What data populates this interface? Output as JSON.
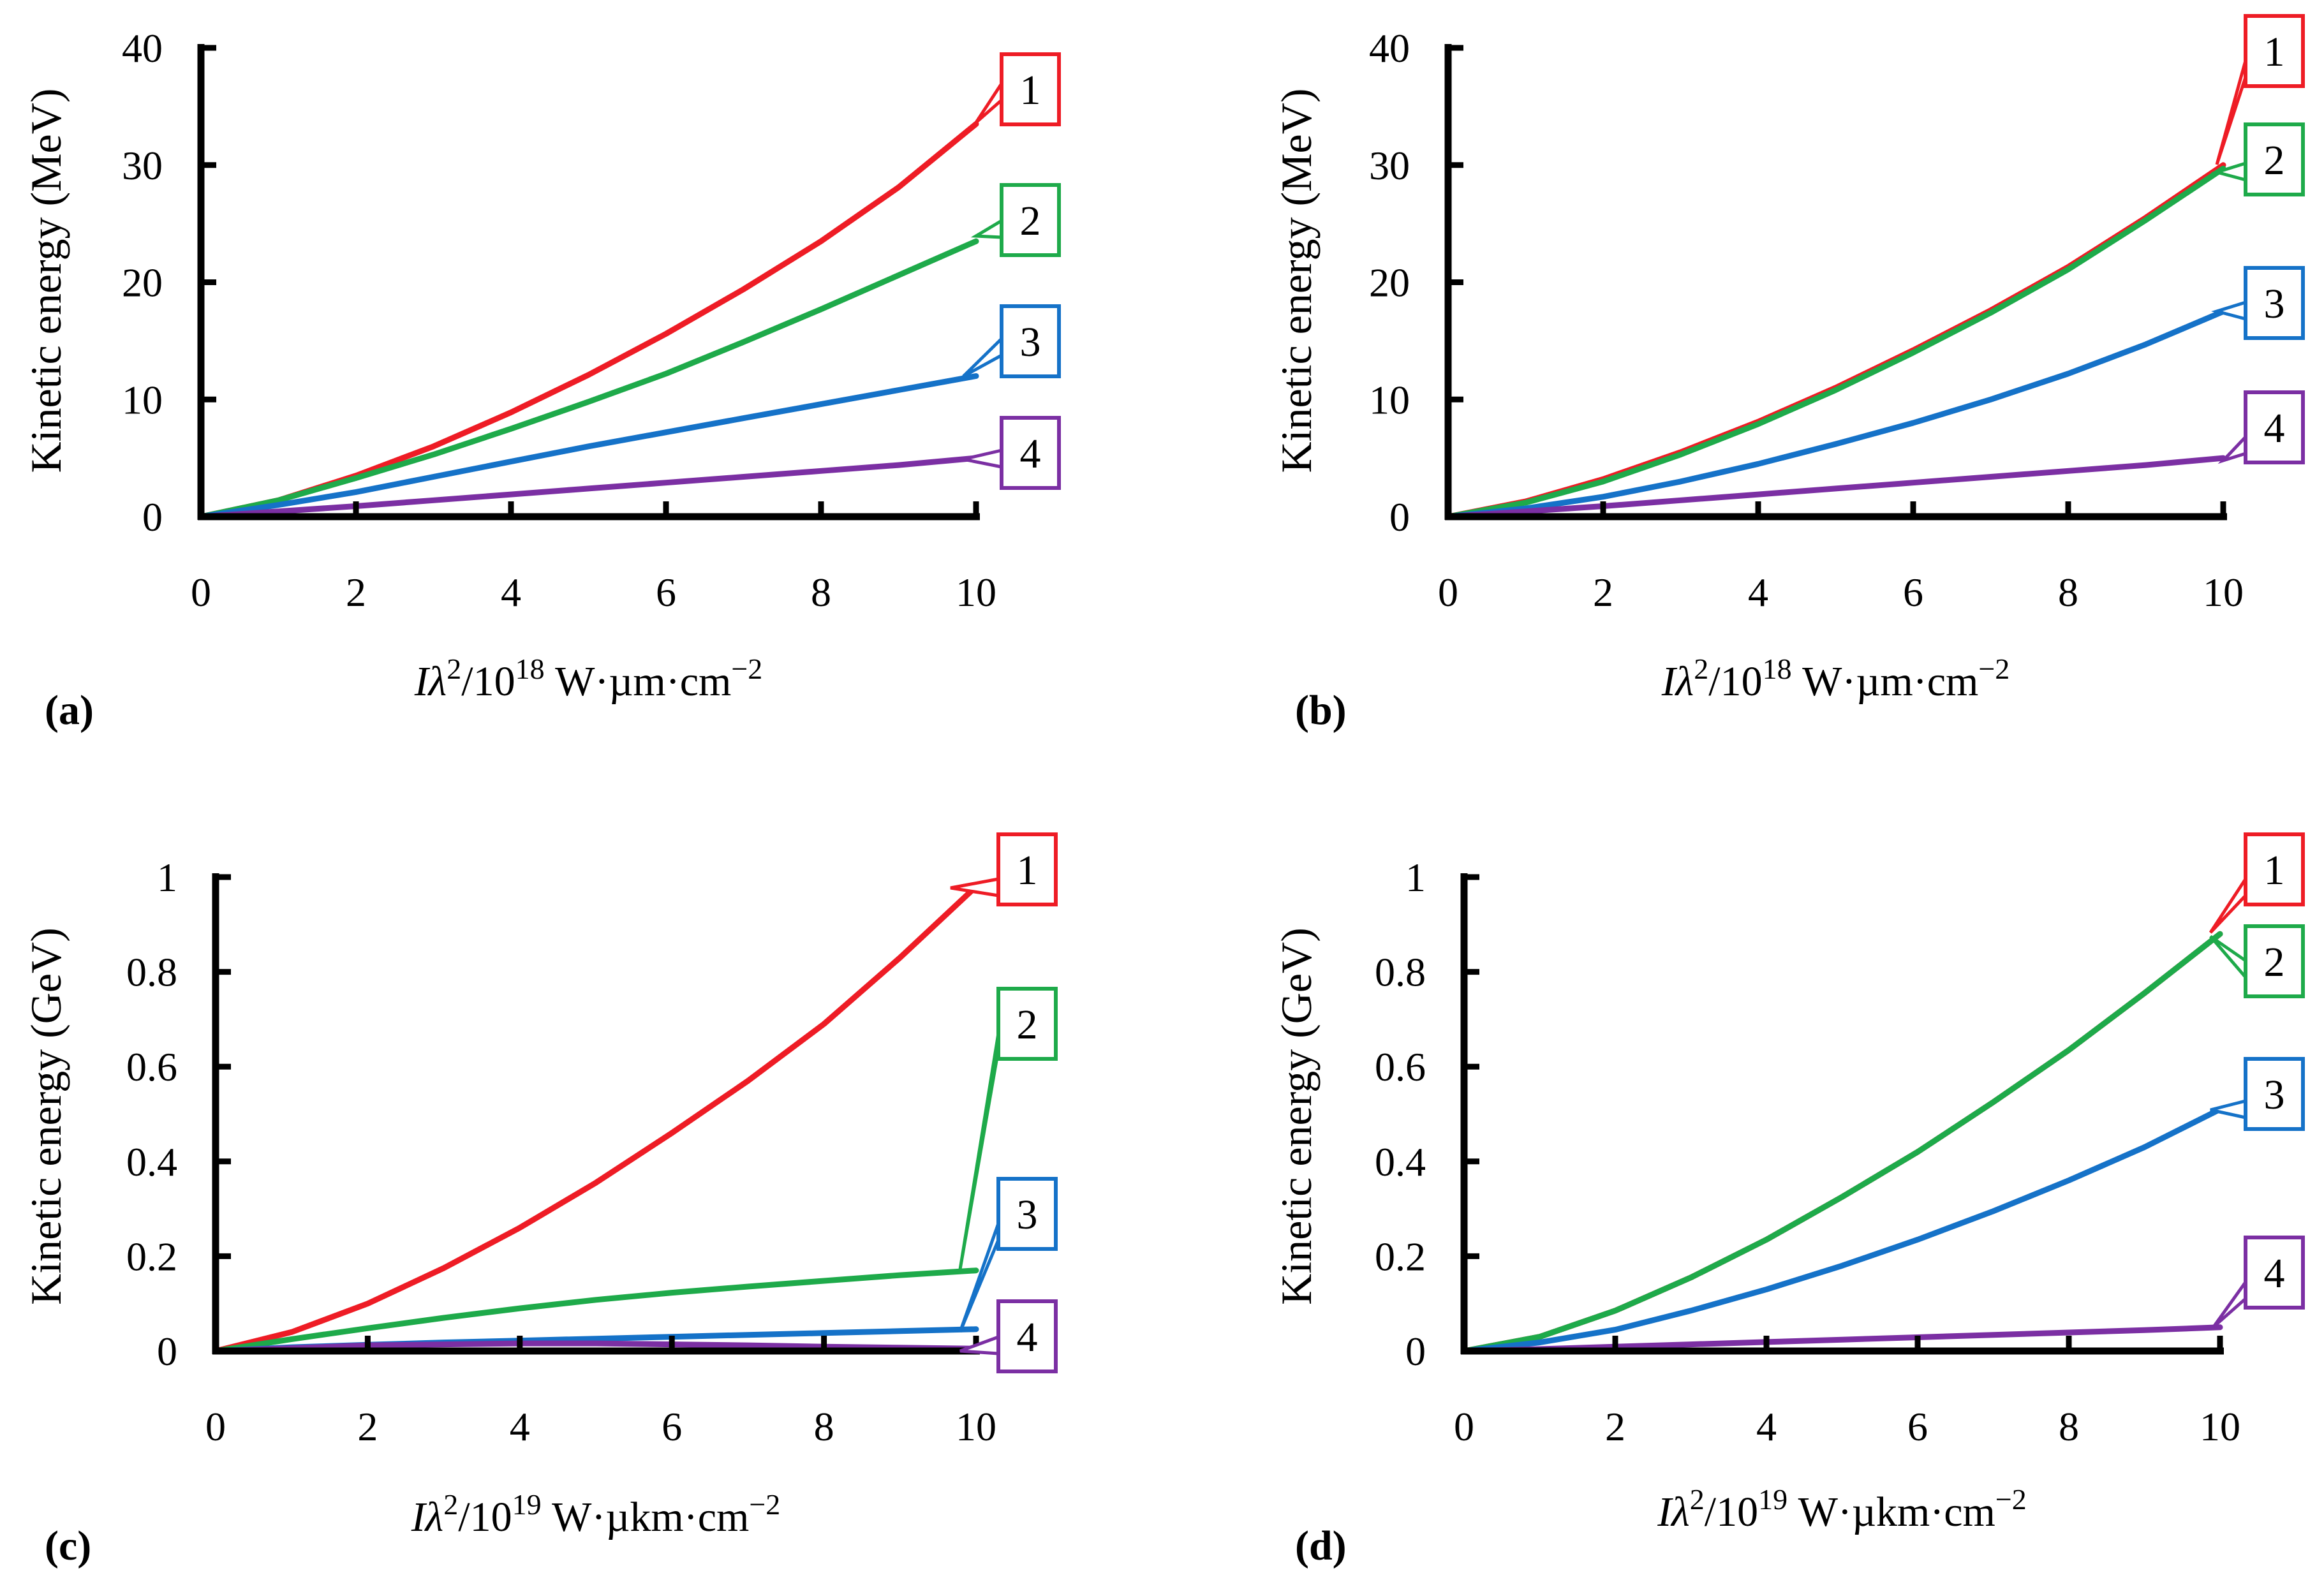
{
  "chart_data": [
    {
      "type": "line",
      "panel_label": "(a)",
      "ylabel": "Kinetic energy (MeV)",
      "xlabel": {
        "base": "I",
        "sym": "λ",
        "exp1": "2",
        "mid": "/10",
        "exp2": "18",
        "unit": " W·µm·cm",
        "exp3": "−2"
      },
      "x_ticks": [
        "0",
        "2",
        "4",
        "6",
        "8",
        "10"
      ],
      "y_ticks": [
        "0",
        "10",
        "20",
        "30",
        "40"
      ],
      "xlim": [
        0,
        10
      ],
      "ylim": [
        0,
        40
      ],
      "x": [
        0,
        1,
        2,
        3,
        4,
        5,
        6,
        7,
        8,
        9,
        10
      ],
      "series": [
        {
          "name": "1",
          "color": "#ee1c25",
          "values": [
            0,
            1.4,
            3.5,
            6.0,
            8.9,
            12.1,
            15.6,
            19.4,
            23.5,
            28.1,
            33.5
          ]
        },
        {
          "name": "2",
          "color": "#1eaa4a",
          "values": [
            0,
            1.4,
            3.3,
            5.3,
            7.5,
            9.8,
            12.2,
            14.9,
            17.7,
            20.6,
            23.5
          ]
        },
        {
          "name": "3",
          "color": "#1572c8",
          "values": [
            0,
            1.0,
            2.1,
            3.4,
            4.7,
            6.0,
            7.2,
            8.4,
            9.6,
            10.8,
            12.0
          ]
        },
        {
          "name": "4",
          "color": "#7b2fa3",
          "values": [
            0,
            0.45,
            0.9,
            1.4,
            1.9,
            2.4,
            2.9,
            3.4,
            3.9,
            4.4,
            5.0
          ]
        }
      ]
    },
    {
      "type": "line",
      "panel_label": "(b)",
      "ylabel": "Kinetic energy (MeV)",
      "xlabel": {
        "base": "I",
        "sym": "λ",
        "exp1": "2",
        "mid": "/10",
        "exp2": "18",
        "unit": " W·µm·cm",
        "exp3": "−2"
      },
      "x_ticks": [
        "0",
        "2",
        "4",
        "6",
        "8",
        "10"
      ],
      "y_ticks": [
        "0",
        "10",
        "20",
        "30",
        "40"
      ],
      "xlim": [
        0,
        10
      ],
      "ylim": [
        0,
        40
      ],
      "x": [
        0,
        1,
        2,
        3,
        4,
        5,
        6,
        7,
        8,
        9,
        10
      ],
      "series": [
        {
          "name": "1",
          "color": "#ee1c25",
          "values": [
            0,
            1.3,
            3.2,
            5.5,
            8.1,
            11.0,
            14.2,
            17.6,
            21.3,
            25.5,
            30.0
          ]
        },
        {
          "name": "2",
          "color": "#1eaa4a",
          "values": [
            0,
            1.2,
            3.0,
            5.3,
            7.9,
            10.8,
            14.0,
            17.4,
            21.1,
            25.3,
            29.7
          ]
        },
        {
          "name": "3",
          "color": "#1572c8",
          "values": [
            0,
            0.7,
            1.7,
            3.0,
            4.5,
            6.2,
            8.0,
            10.0,
            12.2,
            14.7,
            17.5
          ]
        },
        {
          "name": "4",
          "color": "#7b2fa3",
          "values": [
            0,
            0.45,
            0.9,
            1.4,
            1.9,
            2.4,
            2.9,
            3.4,
            3.9,
            4.4,
            5.0
          ]
        }
      ]
    },
    {
      "type": "line",
      "panel_label": "(c)",
      "ylabel": "Kinetic energy (GeV)",
      "xlabel": {
        "base": "I",
        "sym": "λ",
        "exp1": "2",
        "mid": "/10",
        "exp2": "19",
        "unit": " W·µkm·cm",
        "exp3": "−2"
      },
      "x_ticks": [
        "0",
        "2",
        "4",
        "6",
        "8",
        "10"
      ],
      "y_ticks": [
        "0",
        "0.2",
        "0.4",
        "0.6",
        "0.8",
        "1"
      ],
      "xlim": [
        0,
        10
      ],
      "ylim": [
        0,
        1
      ],
      "x": [
        0,
        1,
        2,
        3,
        4,
        5,
        6,
        7,
        8,
        9,
        10
      ],
      "series": [
        {
          "name": "1",
          "color": "#ee1c25",
          "values": [
            0,
            0.04,
            0.1,
            0.175,
            0.26,
            0.355,
            0.46,
            0.57,
            0.69,
            0.83,
            0.98
          ]
        },
        {
          "name": "2",
          "color": "#1eaa4a",
          "values": [
            0,
            0.025,
            0.048,
            0.07,
            0.09,
            0.108,
            0.123,
            0.136,
            0.148,
            0.16,
            0.17
          ]
        },
        {
          "name": "3",
          "color": "#1572c8",
          "values": [
            0,
            0.008,
            0.013,
            0.018,
            0.022,
            0.026,
            0.03,
            0.034,
            0.038,
            0.042,
            0.046
          ]
        },
        {
          "name": "4",
          "color": "#7b2fa3",
          "values": [
            0,
            0.006,
            0.012,
            0.014,
            0.016,
            0.016,
            0.014,
            0.012,
            0.009,
            0.007,
            0.005
          ]
        }
      ]
    },
    {
      "type": "line",
      "panel_label": "(d)",
      "ylabel": "Kinetic energy (GeV)",
      "xlabel": {
        "base": "I",
        "sym": "λ",
        "exp1": "2",
        "mid": "/10",
        "exp2": "19",
        "unit": " W·µkm·cm",
        "exp3": "−2"
      },
      "x_ticks": [
        "0",
        "2",
        "4",
        "6",
        "8",
        "10"
      ],
      "y_ticks": [
        "0",
        "0.2",
        "0.4",
        "0.6",
        "0.8",
        "1"
      ],
      "xlim": [
        0,
        10
      ],
      "ylim": [
        0,
        1
      ],
      "x": [
        0,
        1,
        2,
        3,
        4,
        5,
        6,
        7,
        8,
        9,
        10
      ],
      "series": [
        {
          "name": "1",
          "color": "#ee1c25",
          "values": [
            0,
            0.03,
            0.085,
            0.155,
            0.235,
            0.325,
            0.42,
            0.525,
            0.635,
            0.755,
            0.88
          ]
        },
        {
          "name": "2",
          "color": "#1eaa4a",
          "values": [
            0,
            0.03,
            0.085,
            0.155,
            0.235,
            0.325,
            0.42,
            0.525,
            0.635,
            0.755,
            0.88
          ]
        },
        {
          "name": "3",
          "color": "#1572c8",
          "values": [
            0,
            0.018,
            0.045,
            0.085,
            0.13,
            0.18,
            0.235,
            0.295,
            0.36,
            0.43,
            0.51
          ]
        },
        {
          "name": "4",
          "color": "#7b2fa3",
          "values": [
            0,
            0.004,
            0.009,
            0.014,
            0.019,
            0.024,
            0.029,
            0.034,
            0.039,
            0.044,
            0.05
          ]
        }
      ]
    }
  ]
}
